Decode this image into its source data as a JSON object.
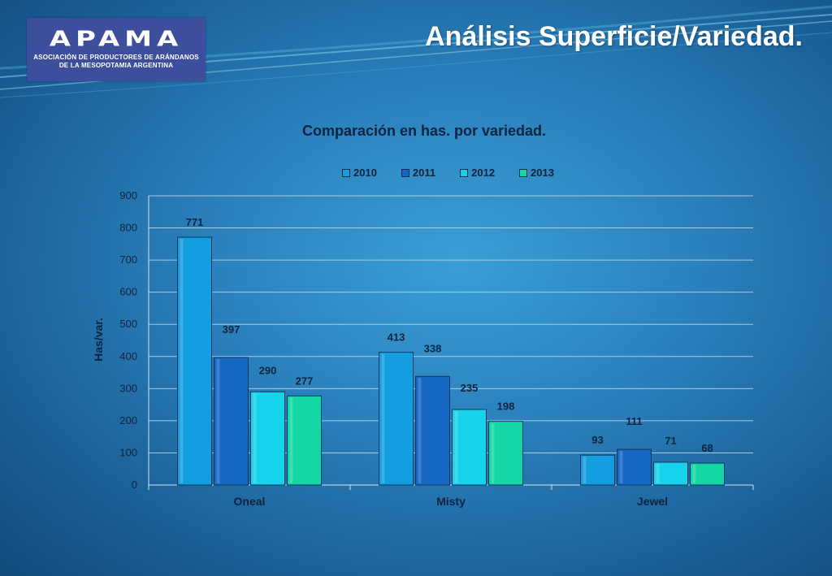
{
  "header": {
    "logo_text": "APAMA",
    "logo_sub_line1": "ASOCIACIÓN DE PRODUCTORES DE ARÁNDANOS",
    "logo_sub_line2": "DE LA MESOPOTAMIA ARGENTINA",
    "title": "Análisis Superficie/Variedad."
  },
  "chart_data": {
    "type": "bar",
    "title": "Comparación en has. por variedad.",
    "xlabel": "",
    "ylabel": "Has/var.",
    "ylim": [
      0,
      900
    ],
    "yticks": [
      0,
      100,
      200,
      300,
      400,
      500,
      600,
      700,
      800,
      900
    ],
    "categories": [
      "Oneal",
      "Misty",
      "Jewel"
    ],
    "series": [
      {
        "name": "2010",
        "values": [
          771,
          413,
          93
        ],
        "color": "#129ee0"
      },
      {
        "name": "2011",
        "values": [
          397,
          338,
          111
        ],
        "color": "#1666c4"
      },
      {
        "name": "2012",
        "values": [
          290,
          235,
          71
        ],
        "color": "#16d2ea"
      },
      {
        "name": "2013",
        "values": [
          277,
          198,
          68
        ],
        "color": "#14d6a4"
      }
    ],
    "grid": true,
    "legend_position": "top"
  }
}
